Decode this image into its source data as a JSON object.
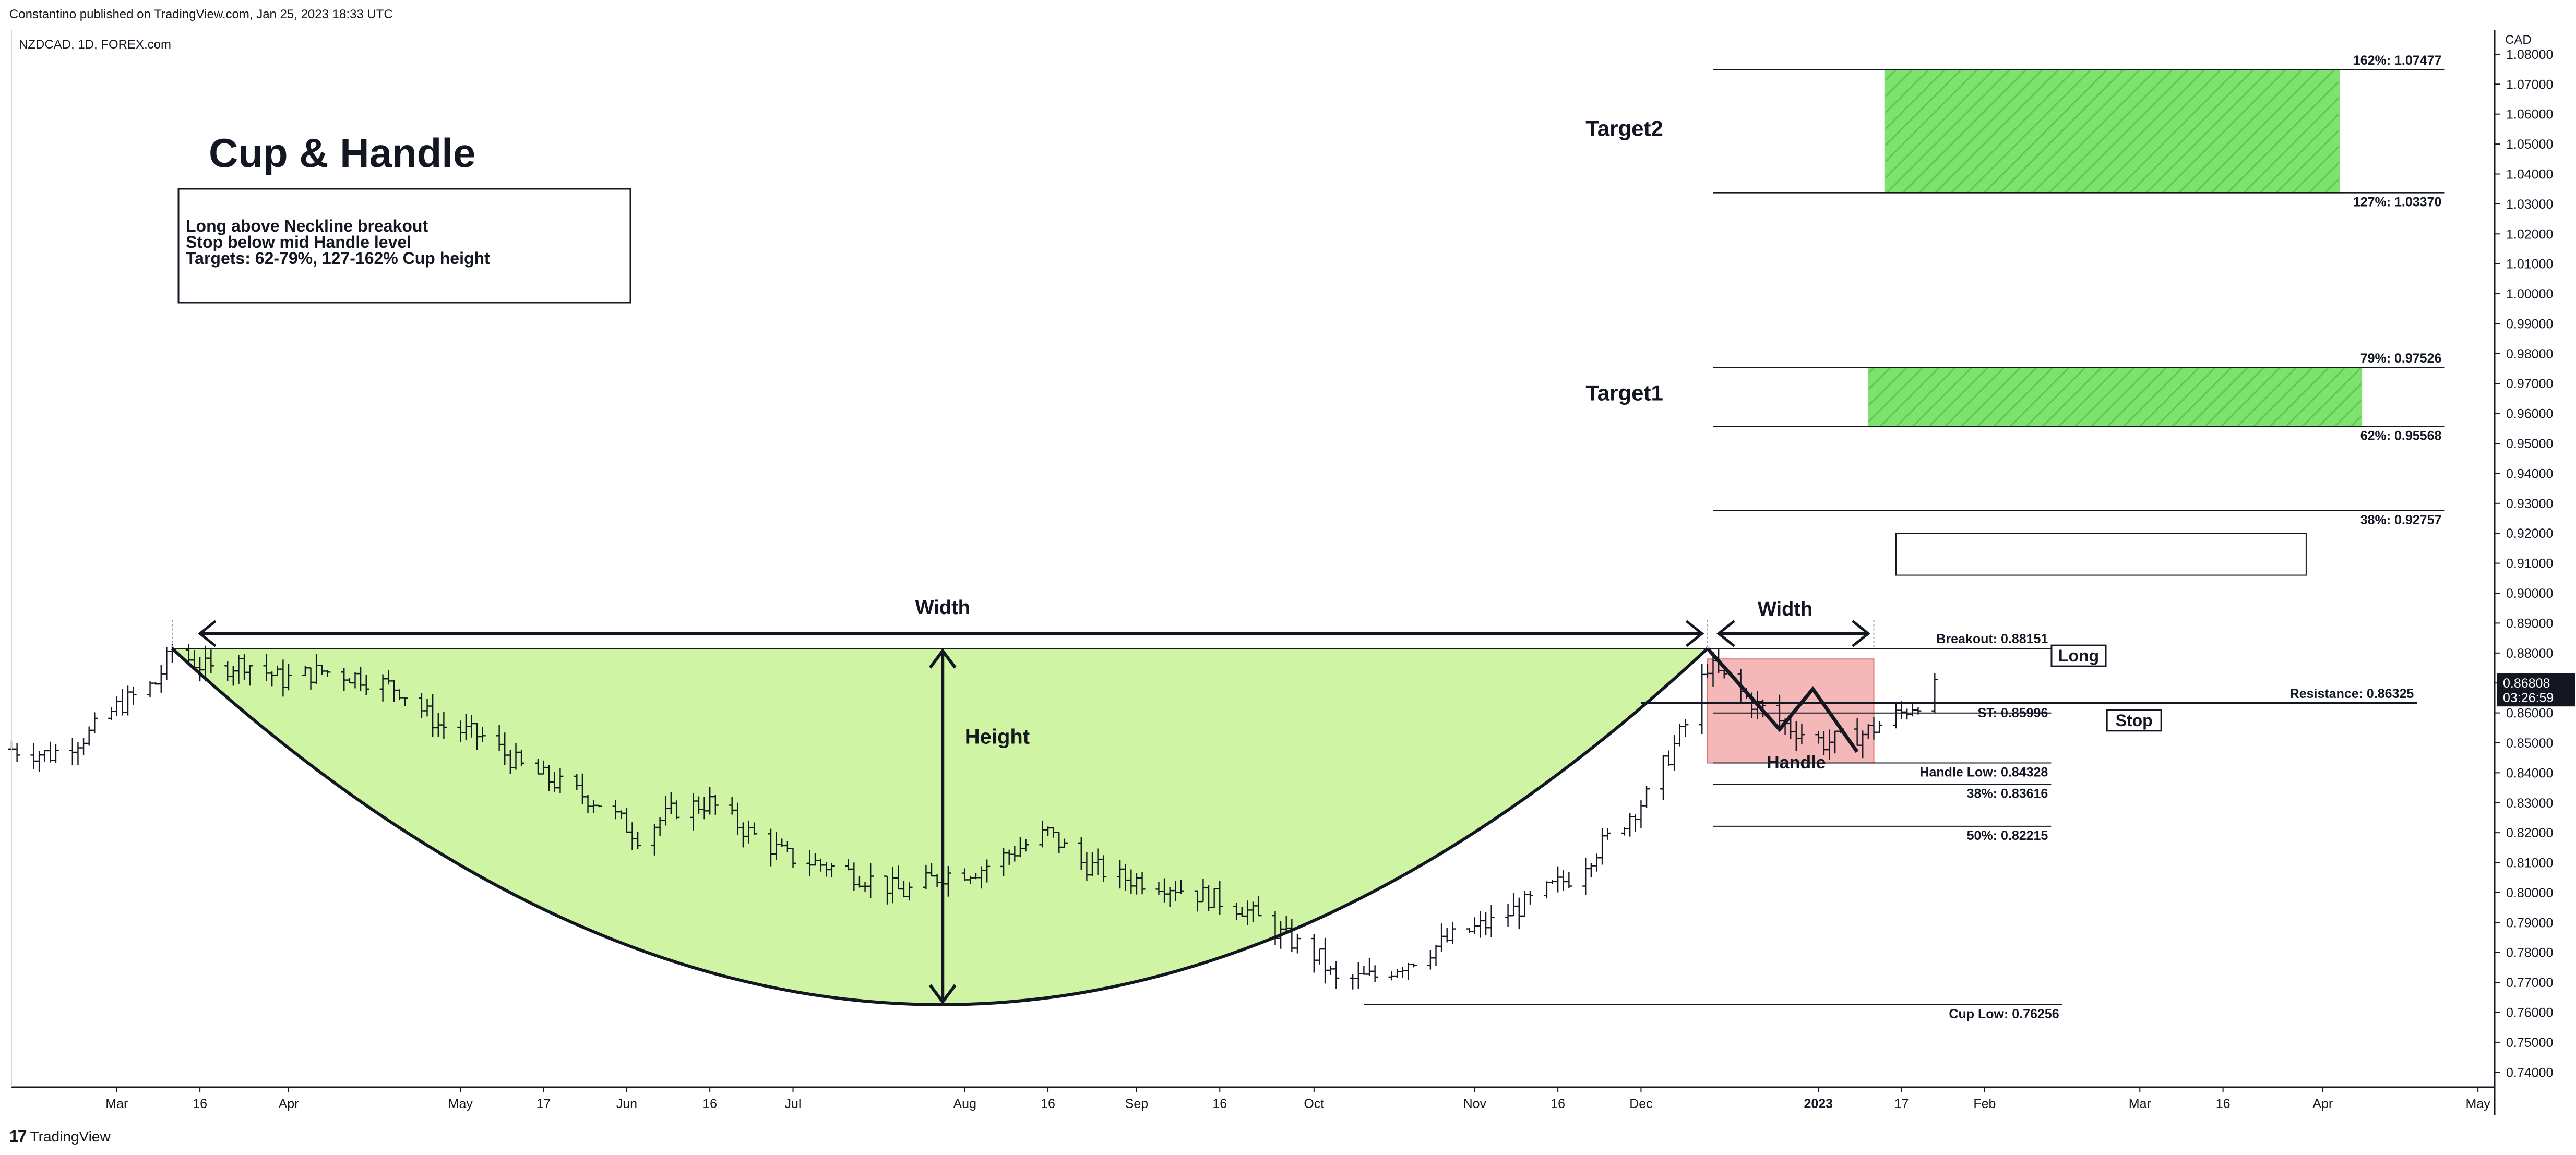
{
  "header": {
    "published": "Constantino published on TradingView.com, Jan 25, 2023 18:33 UTC",
    "symbol": "NZDCAD, 1D, FOREX.com"
  },
  "footer": {
    "logo_mark": "17",
    "brand": "TradingView"
  },
  "chart_data": {
    "type": "ohlc",
    "symbol": "NZDCAD",
    "interval": "1D",
    "currency": "CAD",
    "title": "Cup & Handle",
    "note_lines": [
      "Long above Neckline breakout",
      "Stop below mid Handle level",
      "Targets: 62-79%, 127-162% Cup height"
    ],
    "ylim": [
      0.735,
      1.088
    ],
    "y_ticks": [
      0.74,
      0.75,
      0.76,
      0.77,
      0.78,
      0.79,
      0.8,
      0.81,
      0.82,
      0.83,
      0.84,
      0.85,
      0.86,
      0.87,
      0.88,
      0.89,
      0.9,
      0.91,
      0.92,
      0.93,
      0.94,
      0.95,
      0.96,
      0.97,
      0.98,
      0.99,
      1.0,
      1.01,
      1.02,
      1.03,
      1.04,
      1.05,
      1.06,
      1.07,
      1.08
    ],
    "y_tick_labels": [
      "0.74000",
      "0.75000",
      "0.76000",
      "0.77000",
      "0.78000",
      "0.79000",
      "0.80000",
      "0.81000",
      "0.82000",
      "0.83000",
      "0.84000",
      "0.85000",
      "0.86000",
      "0.87000",
      "0.88000",
      "0.89000",
      "0.90000",
      "0.91000",
      "0.92000",
      "0.93000",
      "0.94000",
      "0.95000",
      "0.96000",
      "0.97000",
      "0.98000",
      "0.99000",
      "1.00000",
      "1.01000",
      "1.02000",
      "1.03000",
      "1.04000",
      "1.05000",
      "1.06000",
      "1.07000",
      "1.08000"
    ],
    "x_start": "2022-02-10",
    "x_end": "2023-05-04",
    "x_ticks": [
      {
        "date": "2022-03-01",
        "label": "Mar"
      },
      {
        "date": "2022-03-16",
        "label": "16"
      },
      {
        "date": "2022-04-01",
        "label": "Apr"
      },
      {
        "date": "2022-05-02",
        "label": "May"
      },
      {
        "date": "2022-05-17",
        "label": "17"
      },
      {
        "date": "2022-06-01",
        "label": "Jun"
      },
      {
        "date": "2022-06-16",
        "label": "16"
      },
      {
        "date": "2022-07-01",
        "label": "Jul"
      },
      {
        "date": "2022-08-01",
        "label": "Aug"
      },
      {
        "date": "2022-08-16",
        "label": "16"
      },
      {
        "date": "2022-09-01",
        "label": "Sep"
      },
      {
        "date": "2022-09-16",
        "label": "16"
      },
      {
        "date": "2022-10-03",
        "label": "Oct"
      },
      {
        "date": "2022-11-01",
        "label": "Nov"
      },
      {
        "date": "2022-11-16",
        "label": "16"
      },
      {
        "date": "2022-12-01",
        "label": "Dec"
      },
      {
        "date": "2023-01-02",
        "label": "2023"
      },
      {
        "date": "2023-01-17",
        "label": "17"
      },
      {
        "date": "2023-02-01",
        "label": "Feb"
      },
      {
        "date": "2023-03-01",
        "label": "Mar"
      },
      {
        "date": "2023-03-16",
        "label": "16"
      },
      {
        "date": "2023-04-03",
        "label": "Apr"
      },
      {
        "date": "2023-05-01",
        "label": "May"
      }
    ],
    "price_path": [
      [
        "2022-02-10",
        0.848
      ],
      [
        "2022-02-17",
        0.846
      ],
      [
        "2022-02-24",
        0.853
      ],
      [
        "2022-03-01",
        0.862
      ],
      [
        "2022-03-08",
        0.87
      ],
      [
        "2022-03-11",
        0.881
      ],
      [
        "2022-03-18",
        0.874
      ],
      [
        "2022-03-24",
        0.877
      ],
      [
        "2022-03-31",
        0.871
      ],
      [
        "2022-04-07",
        0.874
      ],
      [
        "2022-04-14",
        0.872
      ],
      [
        "2022-04-21",
        0.868
      ],
      [
        "2022-04-28",
        0.856
      ],
      [
        "2022-05-06",
        0.852
      ],
      [
        "2022-05-13",
        0.842
      ],
      [
        "2022-05-20",
        0.836
      ],
      [
        "2022-05-27",
        0.83
      ],
      [
        "2022-06-03",
        0.819
      ],
      [
        "2022-06-10",
        0.828
      ],
      [
        "2022-06-16",
        0.83
      ],
      [
        "2022-06-23",
        0.82
      ],
      [
        "2022-06-30",
        0.812
      ],
      [
        "2022-07-07",
        0.809
      ],
      [
        "2022-07-14",
        0.805
      ],
      [
        "2022-07-21",
        0.8
      ],
      [
        "2022-07-28",
        0.806
      ],
      [
        "2022-08-04",
        0.808
      ],
      [
        "2022-08-11",
        0.815
      ],
      [
        "2022-08-16",
        0.82
      ],
      [
        "2022-08-22",
        0.81
      ],
      [
        "2022-08-29",
        0.805
      ],
      [
        "2022-09-06",
        0.803
      ],
      [
        "2022-09-13",
        0.799
      ],
      [
        "2022-09-20",
        0.795
      ],
      [
        "2022-09-27",
        0.786
      ],
      [
        "2022-10-04",
        0.778
      ],
      [
        "2022-10-07",
        0.77
      ],
      [
        "2022-10-14",
        0.772
      ],
      [
        "2022-10-21",
        0.778
      ],
      [
        "2022-10-28",
        0.785
      ],
      [
        "2022-11-04",
        0.79
      ],
      [
        "2022-11-11",
        0.797
      ],
      [
        "2022-11-18",
        0.805
      ],
      [
        "2022-11-25",
        0.818
      ],
      [
        "2022-12-02",
        0.832
      ],
      [
        "2022-12-09",
        0.856
      ],
      [
        "2022-12-13",
        0.876
      ],
      [
        "2022-12-20",
        0.865
      ],
      [
        "2022-12-27",
        0.856
      ],
      [
        "2023-01-03",
        0.85
      ],
      [
        "2023-01-10",
        0.853
      ],
      [
        "2023-01-17",
        0.86
      ],
      [
        "2023-01-23",
        0.868
      ]
    ],
    "cup": {
      "rim_left_date": "2022-03-11",
      "rim_right_date": "2022-12-13",
      "rim_price": 0.88151,
      "bottom_date": "2022-07-28",
      "bottom_price": 0.76256,
      "fill": "#cff5a4"
    },
    "cup_low_marker_date": "2022-10-12",
    "handle_zone": {
      "start": "2022-12-13",
      "end": "2023-01-12",
      "top": 0.878,
      "bottom": 0.84328,
      "fill": "#f5b8b8"
    },
    "handle_zigzag": [
      [
        "2022-12-13",
        0.88151
      ],
      [
        "2022-12-26",
        0.8545
      ],
      [
        "2023-01-01",
        0.868
      ],
      [
        "2023-01-09",
        0.847
      ]
    ],
    "target_zones": [
      {
        "name": "Target1",
        "start": "2023-01-11",
        "end": "2023-04-10",
        "top": 0.97526,
        "bottom": 0.95568,
        "fill": "#7ee26e"
      },
      {
        "name": "Target2",
        "start": "2023-01-14",
        "end": "2023-04-06",
        "top": 1.07477,
        "bottom": 1.0337,
        "fill": "#7ee26e"
      }
    ],
    "empty_box": {
      "start": "2023-01-16",
      "end": "2023-03-31",
      "top": 0.92,
      "bottom": 0.906
    },
    "levels": [
      {
        "label": "162%: 1.07477",
        "price": 1.07477,
        "start": "2022-12-14",
        "end": "2023-04-25"
      },
      {
        "label": "127%: 1.03370",
        "price": 1.0337,
        "start": "2022-12-14",
        "end": "2023-04-25"
      },
      {
        "label": "79%: 0.97526",
        "price": 0.97526,
        "start": "2022-12-14",
        "end": "2023-04-25"
      },
      {
        "label": "62%: 0.95568",
        "price": 0.95568,
        "start": "2022-12-14",
        "end": "2023-04-25"
      },
      {
        "label": "38%: 0.92757",
        "price": 0.92757,
        "start": "2022-12-14",
        "end": "2023-04-25"
      },
      {
        "label": "Breakout: 0.88151",
        "price": 0.88151,
        "start": "2022-03-11",
        "end": "2023-02-13"
      },
      {
        "label": "Resistance: 0.86325",
        "price": 0.86325,
        "start": "2022-12-01",
        "end": "2023-04-20"
      },
      {
        "label": "ST: 0.85996",
        "price": 0.85996,
        "start": "2022-12-14",
        "end": "2023-02-13"
      },
      {
        "label": "Handle Low: 0.84328",
        "price": 0.84328,
        "start": "2022-12-14",
        "end": "2023-02-13"
      },
      {
        "label": "38%: 0.83616",
        "price": 0.83616,
        "start": "2022-12-14",
        "end": "2023-02-13"
      },
      {
        "label": "50%: 0.82215",
        "price": 0.82215,
        "start": "2022-12-14",
        "end": "2023-02-13"
      },
      {
        "label": "Cup Low: 0.76256",
        "price": 0.76256,
        "start": "2022-10-12",
        "end": "2023-02-15"
      }
    ],
    "callout_labels": [
      {
        "text": "Long",
        "date": "2023-02-14",
        "price": 0.88151
      },
      {
        "text": "Stop",
        "date": "2023-02-24",
        "price": 0.85996
      }
    ],
    "annotations": [
      {
        "text": "Width",
        "date": "2022-07-28",
        "price": 0.893
      },
      {
        "text": "Width",
        "date": "2022-12-27",
        "price": 0.8925
      },
      {
        "text": "Height",
        "date": "2022-08-01",
        "price": 0.8497
      },
      {
        "text": "Handle",
        "date": "2022-12-29",
        "price": 0.8415
      },
      {
        "text": "Target1",
        "date": "2022-11-28",
        "price": 0.9644
      },
      {
        "text": "Target2",
        "date": "2022-11-28",
        "price": 1.0527
      }
    ],
    "width_arrows": [
      {
        "start": "2022-03-16",
        "end": "2022-12-12",
        "price": 0.8865
      },
      {
        "start": "2022-12-15",
        "end": "2023-01-11",
        "price": 0.8865
      }
    ],
    "height_arrow": {
      "date": "2022-07-28",
      "top": 0.8807,
      "bottom": 0.7635
    },
    "last_price": {
      "value": "0.86808",
      "timer": "03:26:59",
      "price": 0.86808
    },
    "colors": {
      "bar": "#131722",
      "label_bg": "#131722",
      "label_text": "#ffffff",
      "frame": "#131722"
    }
  }
}
